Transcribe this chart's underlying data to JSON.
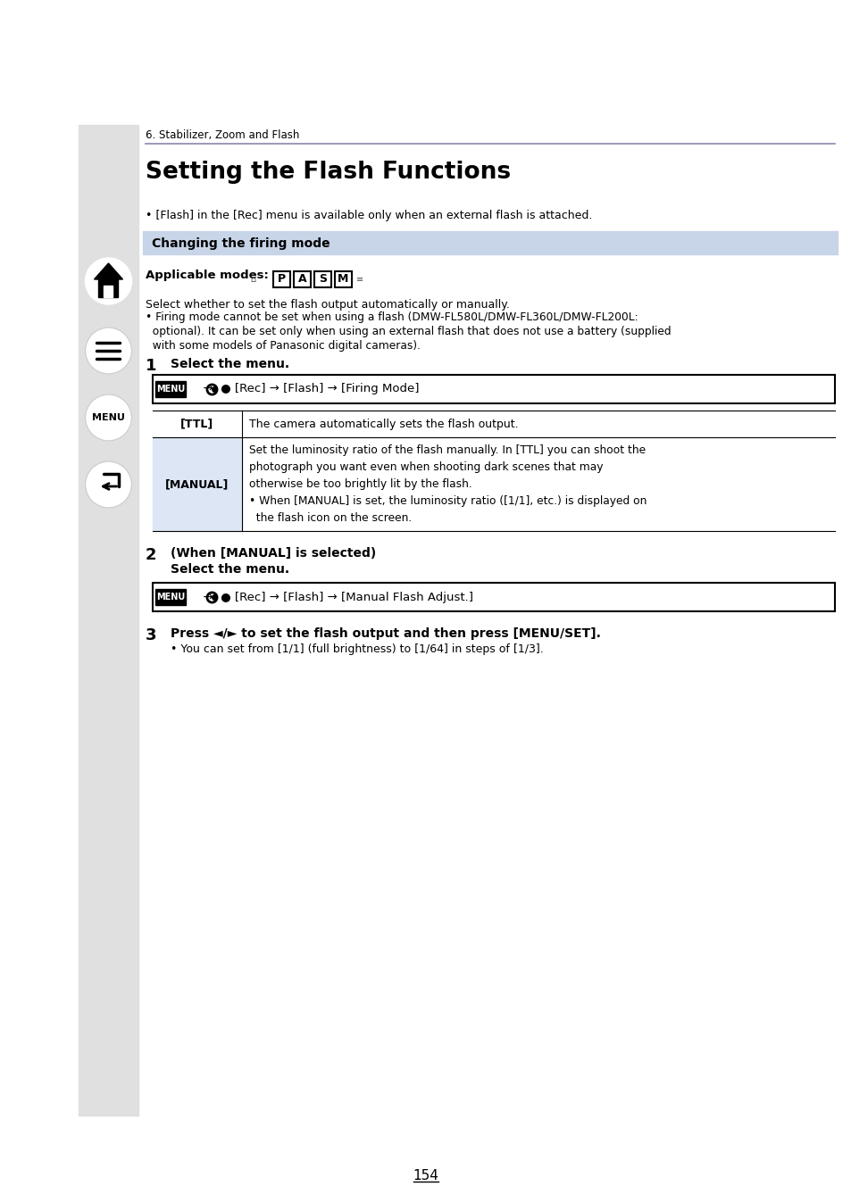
{
  "page_bg": "#ffffff",
  "sidebar_bg": "#e0e0e0",
  "chapter_label": "6. Stabilizer, Zoom and Flash",
  "title": "Setting the Flash Functions",
  "bullet_intro": "• [Flash] in the [Rec] menu is available only when an external flash is attached.",
  "section_header": "Changing the firing mode",
  "section_header_bg": "#c8d4e8",
  "applicable_modes_label": "Applicable modes:",
  "mode_letters": [
    "P",
    "A",
    "S",
    "M"
  ],
  "select_line": "Select whether to set the flash output automatically or manually.",
  "firing_note_line1": "• Firing mode cannot be set when using a flash (DMW-FL580L/DMW-FL360L/DMW-FL200L:",
  "firing_note_line2": "  optional). It can be set only when using an external flash that does not use a battery (supplied",
  "firing_note_line3": "  with some models of Panasonic digital cameras).",
  "step1_num": "1",
  "step1_text": "Select the menu.",
  "ttl_label": "[TTL]",
  "ttl_desc": "The camera automatically sets the flash output.",
  "manual_label": "[MANUAL]",
  "manual_desc_lines": [
    "Set the luminosity ratio of the flash manually. In [TTL] you can shoot the",
    "photograph you want even when shooting dark scenes that may",
    "otherwise be too brightly lit by the flash.",
    "• When [MANUAL] is set, the luminosity ratio ([1/1], etc.) is displayed on",
    "  the flash icon on the screen."
  ],
  "manual_label_bg": "#dce6f5",
  "step2_num": "2",
  "step2_line1": "(When [MANUAL] is selected)",
  "step2_line2": "Select the menu.",
  "step3_num": "3",
  "step3_bold": "Press ◄/► to set the flash output and then press [MENU/SET].",
  "step3_bullet": "• You can set from [1/1] (full brightness) to [1/64] in steps of [1/3].",
  "page_number": "154"
}
